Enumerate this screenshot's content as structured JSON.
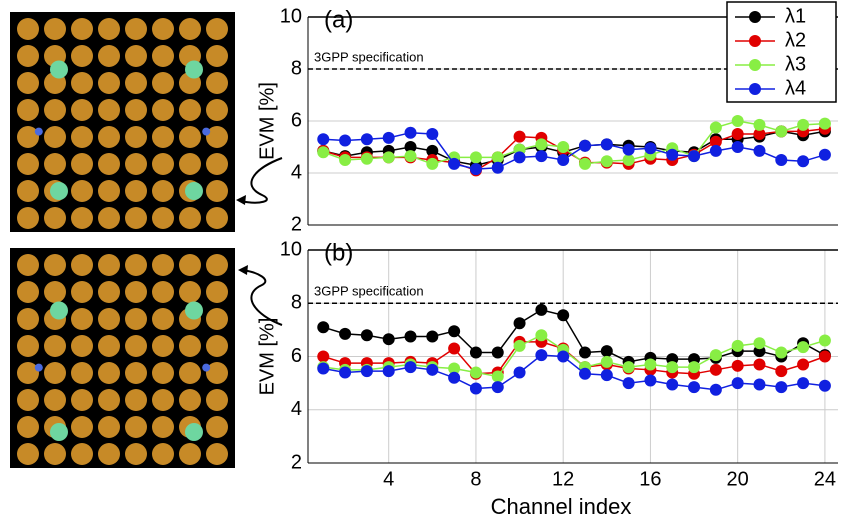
{
  "chart_data": [
    {
      "type": "line",
      "panel_label": "(a)",
      "ylabel": "EVM [%]",
      "x": [
        1,
        2,
        3,
        4,
        5,
        6,
        7,
        8,
        9,
        10,
        11,
        12,
        13,
        14,
        15,
        16,
        17,
        18,
        19,
        20,
        21,
        22,
        23,
        24
      ],
      "xlim": [
        0.3,
        24.6
      ],
      "ylim": [
        2,
        10
      ],
      "yticks": [
        2,
        4,
        6,
        8,
        10
      ],
      "spec_line": {
        "value": 8,
        "label": "3GPP specification"
      },
      "legend": "upper right",
      "series": [
        {
          "name": "λ1",
          "color": "#000000",
          "values": [
            4.85,
            4.65,
            4.8,
            4.85,
            5.0,
            4.85,
            4.45,
            4.3,
            4.5,
            4.9,
            5.0,
            4.8,
            5.05,
            5.1,
            5.05,
            5.0,
            4.85,
            4.8,
            5.3,
            5.3,
            5.4,
            5.6,
            5.45,
            5.6
          ]
        },
        {
          "name": "λ2",
          "color": "#e00000",
          "values": [
            4.85,
            4.6,
            4.6,
            4.6,
            4.6,
            4.5,
            4.4,
            4.1,
            4.6,
            5.4,
            5.35,
            4.9,
            4.4,
            4.4,
            4.35,
            4.55,
            4.5,
            4.7,
            5.2,
            5.5,
            5.5,
            5.6,
            5.6,
            5.7
          ]
        },
        {
          "name": "λ3",
          "color": "#88ee44",
          "values": [
            4.8,
            4.5,
            4.55,
            4.6,
            4.65,
            4.35,
            4.6,
            4.6,
            4.6,
            4.9,
            5.1,
            5.0,
            4.35,
            4.45,
            4.5,
            4.7,
            4.95,
            4.65,
            5.75,
            6.0,
            5.85,
            5.6,
            5.85,
            5.9
          ]
        },
        {
          "name": "λ4",
          "color": "#1020e0",
          "values": [
            5.3,
            5.25,
            5.3,
            5.35,
            5.55,
            5.5,
            4.35,
            4.15,
            4.2,
            4.6,
            4.65,
            4.5,
            5.05,
            5.1,
            4.9,
            4.95,
            4.7,
            4.65,
            4.85,
            5.0,
            4.85,
            4.5,
            4.45,
            4.7
          ]
        }
      ]
    },
    {
      "type": "line",
      "panel_label": "(b)",
      "ylabel": "EVM [%]",
      "xlabel": "Channel index",
      "x": [
        1,
        2,
        3,
        4,
        5,
        6,
        7,
        8,
        9,
        10,
        11,
        12,
        13,
        14,
        15,
        16,
        17,
        18,
        19,
        20,
        21,
        22,
        23,
        24
      ],
      "xlim": [
        0.3,
        24.6
      ],
      "xticks": [
        4,
        8,
        12,
        16,
        20,
        24
      ],
      "ylim": [
        2,
        10
      ],
      "yticks": [
        2,
        4,
        6,
        8,
        10
      ],
      "spec_line": {
        "value": 8,
        "label": "3GPP specification"
      },
      "series": [
        {
          "color": "#000000",
          "values": [
            7.1,
            6.85,
            6.8,
            6.65,
            6.75,
            6.75,
            6.95,
            6.15,
            6.15,
            7.25,
            7.75,
            7.55,
            6.15,
            6.2,
            5.8,
            5.95,
            5.9,
            5.9,
            5.95,
            6.2,
            6.2,
            6.0,
            6.5,
            6.05
          ]
        },
        {
          "color": "#e00000",
          "values": [
            6.0,
            5.75,
            5.75,
            5.75,
            5.8,
            5.75,
            6.3,
            5.35,
            5.4,
            6.55,
            6.55,
            6.3,
            5.6,
            5.7,
            5.55,
            5.5,
            5.4,
            5.35,
            5.5,
            5.65,
            5.7,
            5.45,
            5.7,
            6.0
          ]
        },
        {
          "color": "#88ee44",
          "values": [
            5.6,
            5.5,
            5.5,
            5.6,
            5.7,
            5.6,
            5.55,
            5.4,
            5.25,
            6.4,
            6.8,
            6.25,
            5.6,
            5.8,
            5.6,
            5.7,
            5.6,
            5.6,
            6.05,
            6.4,
            6.5,
            6.15,
            6.35,
            6.6
          ]
        },
        {
          "color": "#1020e0",
          "values": [
            5.55,
            5.4,
            5.45,
            5.45,
            5.6,
            5.5,
            5.2,
            4.8,
            4.85,
            5.4,
            6.05,
            6.0,
            5.35,
            5.3,
            5.0,
            5.1,
            4.95,
            4.85,
            4.75,
            5.0,
            4.95,
            4.85,
            5.0,
            4.9
          ]
        }
      ]
    }
  ]
}
